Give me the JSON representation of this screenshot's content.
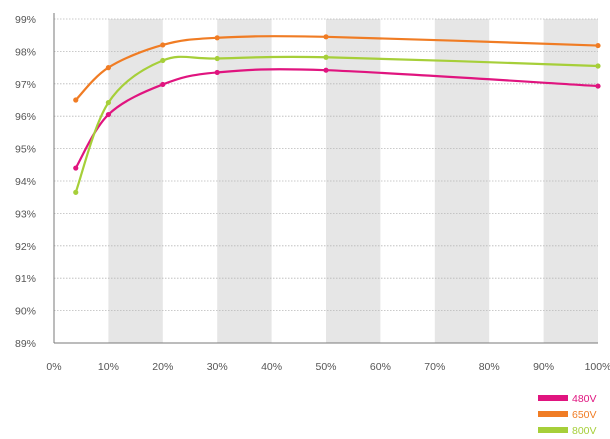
{
  "chart_data": {
    "type": "line",
    "title": "",
    "xlabel": "",
    "ylabel": "",
    "x_ticks": [
      "0%",
      "10%",
      "20%",
      "30%",
      "40%",
      "50%",
      "60%",
      "70%",
      "80%",
      "90%",
      "100%"
    ],
    "y_ticks": [
      "89%",
      "90%",
      "91%",
      "92%",
      "93%",
      "94%",
      "95%",
      "96%",
      "97%",
      "98%",
      "99%"
    ],
    "xlim": [
      0,
      100
    ],
    "ylim": [
      89,
      99
    ],
    "grid": "horizontal dotted lines with alternating grey vertical bands",
    "legend_position": "bottom-right",
    "series": [
      {
        "name": "480V",
        "color": "#e0147f",
        "points": [
          [
            4,
            94.4
          ],
          [
            10,
            96.05
          ],
          [
            20,
            96.98
          ],
          [
            30,
            97.35
          ],
          [
            50,
            97.42
          ],
          [
            100,
            96.93
          ]
        ]
      },
      {
        "name": "650V",
        "color": "#f07c24",
        "points": [
          [
            4,
            96.5
          ],
          [
            10,
            97.5
          ],
          [
            20,
            98.2
          ],
          [
            30,
            98.42
          ],
          [
            50,
            98.45
          ],
          [
            100,
            98.18
          ]
        ]
      },
      {
        "name": "800V",
        "color": "#a6cf39",
        "points": [
          [
            4,
            93.65
          ],
          [
            10,
            96.42
          ],
          [
            20,
            97.72
          ],
          [
            30,
            97.78
          ],
          [
            50,
            97.82
          ],
          [
            100,
            97.55
          ]
        ]
      }
    ]
  }
}
